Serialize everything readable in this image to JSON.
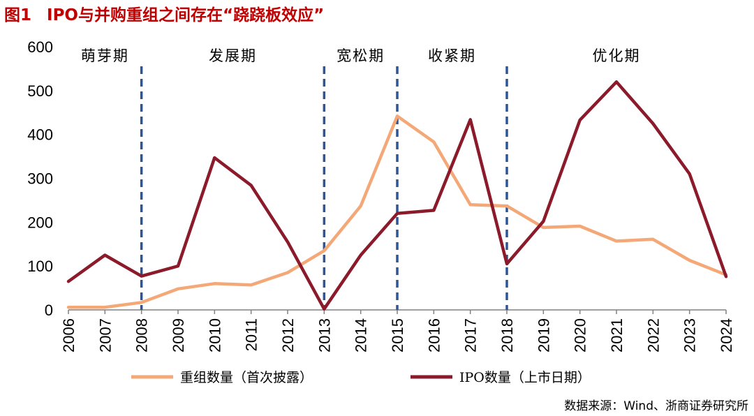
{
  "header": {
    "figure_no": "图1",
    "title": "IPO与并购重组之间存在“跷跷板效应”"
  },
  "source": "数据来源：Wind、浙商证券研究所",
  "colors": {
    "restructure": "#f4a877",
    "ipo": "#8b1a2b",
    "divider": "#2e5597",
    "title": "#c00000"
  },
  "chart_data": {
    "type": "line",
    "title": "",
    "xlabel": "",
    "ylabel": "",
    "ylim": [
      0,
      600
    ],
    "yticks": [
      "0",
      "100",
      "200",
      "300",
      "400",
      "500",
      "600"
    ],
    "x": [
      "2006",
      "2007",
      "2008",
      "2009",
      "2010",
      "2011",
      "2012",
      "2013",
      "2014",
      "2015",
      "2016",
      "2017",
      "2018",
      "2019",
      "2020",
      "2021",
      "2022",
      "2023",
      "2024"
    ],
    "series": [
      {
        "name": "重组数量（首次披露）",
        "color": "#f4a877",
        "values": [
          6,
          6,
          17,
          48,
          60,
          57,
          85,
          135,
          237,
          442,
          383,
          240,
          237,
          188,
          191,
          157,
          161,
          113,
          80
        ]
      },
      {
        "name": "IPO数量（上市日期）",
        "color": "#8b1a2b",
        "values": [
          65,
          125,
          77,
          100,
          347,
          284,
          155,
          2,
          125,
          220,
          227,
          434,
          105,
          202,
          433,
          520,
          425,
          310,
          76
        ]
      }
    ],
    "dividers": [
      "2008",
      "2013",
      "2015",
      "2018"
    ],
    "phases": [
      {
        "label": "萌芽期",
        "x": "2007"
      },
      {
        "label": "发展期",
        "x": "2010.5"
      },
      {
        "label": "宽松期",
        "x": "2014"
      },
      {
        "label": "收紧期",
        "x": "2016.5"
      },
      {
        "label": "优化期",
        "x": "2021"
      }
    ],
    "legend_position": "bottom"
  }
}
